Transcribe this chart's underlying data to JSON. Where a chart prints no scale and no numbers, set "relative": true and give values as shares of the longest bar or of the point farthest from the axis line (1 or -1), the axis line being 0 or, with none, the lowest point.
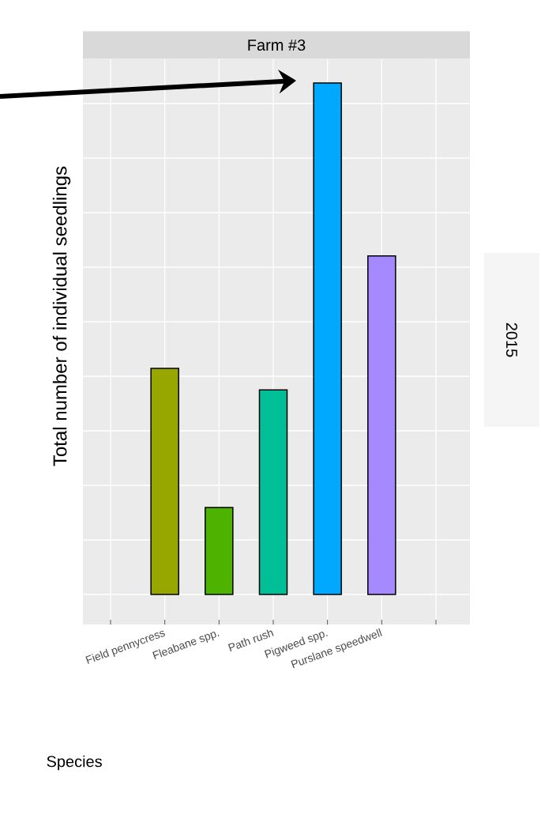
{
  "chart_data": {
    "type": "bar",
    "title": "Farm #3",
    "subtitle": "2015",
    "annotations": [
      "Species"
    ],
    "ylabel": "Total number of individual seedlings",
    "categories": [
      null,
      "Field pennycress",
      "Fleabane spp.",
      "Path rush",
      "Pigweed spp.",
      "Purslane speedwell",
      null
    ],
    "values": [
      null,
      0.442,
      0.17,
      0.4,
      1,
      0.662,
      null
    ],
    "colors": [
      "#98a600",
      "#98a600",
      "#4db300",
      "#00bf96",
      "#00a8ff",
      "#a58aff",
      "#a58aff"
    ],
    "relative": true,
    "grid": true,
    "tick_labels": "x"
  }
}
